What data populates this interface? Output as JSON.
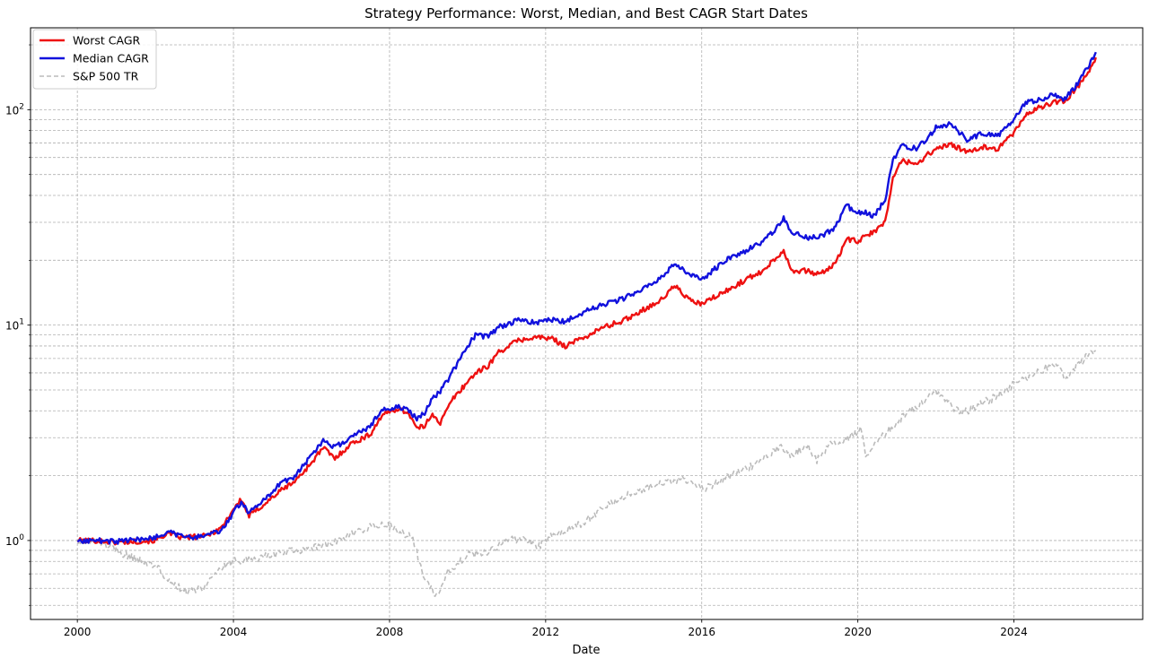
{
  "chart_data": {
    "type": "line",
    "title": "Strategy Performance: Worst, Median, and Best CAGR Start Dates",
    "xlabel": "Date",
    "ylabel": "",
    "yscale": "log",
    "xlim": [
      1998.8,
      2027.3
    ],
    "ylim": [
      0.43,
      240
    ],
    "grid": true,
    "legend_position": "top-left",
    "x_ticks": [
      "2000",
      "2004",
      "2008",
      "2012",
      "2016",
      "2020",
      "2024"
    ],
    "y_ticks": [
      "10^0",
      "10^1",
      "10^2"
    ],
    "series": [
      {
        "name": "Worst CAGR",
        "color": "#ee1111",
        "style": "solid",
        "points": [
          [
            2000.0,
            1.0
          ],
          [
            2000.5,
            1.0
          ],
          [
            2001.0,
            0.98
          ],
          [
            2001.5,
            0.99
          ],
          [
            2002.0,
            1.0
          ],
          [
            2002.3,
            1.08
          ],
          [
            2002.7,
            1.03
          ],
          [
            2003.0,
            1.04
          ],
          [
            2003.3,
            1.05
          ],
          [
            2003.7,
            1.15
          ],
          [
            2004.0,
            1.4
          ],
          [
            2004.2,
            1.55
          ],
          [
            2004.4,
            1.3
          ],
          [
            2004.8,
            1.48
          ],
          [
            2005.2,
            1.7
          ],
          [
            2005.6,
            1.9
          ],
          [
            2006.0,
            2.3
          ],
          [
            2006.3,
            2.7
          ],
          [
            2006.6,
            2.4
          ],
          [
            2007.0,
            2.8
          ],
          [
            2007.5,
            3.1
          ],
          [
            2007.8,
            3.8
          ],
          [
            2008.2,
            4.1
          ],
          [
            2008.5,
            3.9
          ],
          [
            2008.7,
            3.3
          ],
          [
            2008.9,
            3.4
          ],
          [
            2009.1,
            3.9
          ],
          [
            2009.3,
            3.5
          ],
          [
            2009.6,
            4.5
          ],
          [
            2009.9,
            5.2
          ],
          [
            2010.2,
            6.0
          ],
          [
            2010.5,
            6.4
          ],
          [
            2010.8,
            7.5
          ],
          [
            2011.3,
            8.5
          ],
          [
            2011.8,
            8.8
          ],
          [
            2012.2,
            8.6
          ],
          [
            2012.5,
            8.0
          ],
          [
            2013.0,
            8.8
          ],
          [
            2013.5,
            9.8
          ],
          [
            2014.0,
            10.5
          ],
          [
            2014.5,
            11.8
          ],
          [
            2015.0,
            13.2
          ],
          [
            2015.3,
            15.3
          ],
          [
            2015.7,
            13.0
          ],
          [
            2016.0,
            12.5
          ],
          [
            2016.3,
            13.4
          ],
          [
            2016.7,
            14.6
          ],
          [
            2017.0,
            15.8
          ],
          [
            2017.5,
            17.6
          ],
          [
            2017.9,
            20.5
          ],
          [
            2018.1,
            22.2
          ],
          [
            2018.3,
            18.0
          ],
          [
            2018.7,
            17.8
          ],
          [
            2019.0,
            17.2
          ],
          [
            2019.4,
            19.0
          ],
          [
            2019.7,
            25.0
          ],
          [
            2020.0,
            24.5
          ],
          [
            2020.2,
            25.8
          ],
          [
            2020.4,
            27.0
          ],
          [
            2020.7,
            30.0
          ],
          [
            2020.9,
            48.0
          ],
          [
            2021.1,
            58.0
          ],
          [
            2021.5,
            56.0
          ],
          [
            2021.8,
            62.0
          ],
          [
            2022.0,
            66.0
          ],
          [
            2022.4,
            69.0
          ],
          [
            2022.8,
            63.0
          ],
          [
            2023.2,
            67.0
          ],
          [
            2023.6,
            66.0
          ],
          [
            2024.0,
            78.0
          ],
          [
            2024.3,
            95.0
          ],
          [
            2024.7,
            103.0
          ],
          [
            2025.0,
            108.0
          ],
          [
            2025.3,
            110.0
          ],
          [
            2025.6,
            125.0
          ],
          [
            2025.9,
            150.0
          ],
          [
            2026.1,
            175.0
          ]
        ]
      },
      {
        "name": "Median CAGR",
        "color": "#1111dd",
        "style": "solid",
        "points": [
          [
            2000.0,
            1.0
          ],
          [
            2000.5,
            1.0
          ],
          [
            2001.0,
            0.99
          ],
          [
            2001.5,
            1.01
          ],
          [
            2002.0,
            1.03
          ],
          [
            2002.3,
            1.1
          ],
          [
            2002.7,
            1.05
          ],
          [
            2003.0,
            1.03
          ],
          [
            2003.3,
            1.06
          ],
          [
            2003.7,
            1.12
          ],
          [
            2004.0,
            1.35
          ],
          [
            2004.2,
            1.5
          ],
          [
            2004.4,
            1.35
          ],
          [
            2004.8,
            1.55
          ],
          [
            2005.2,
            1.85
          ],
          [
            2005.6,
            2.0
          ],
          [
            2006.0,
            2.5
          ],
          [
            2006.3,
            2.9
          ],
          [
            2006.6,
            2.7
          ],
          [
            2007.0,
            3.0
          ],
          [
            2007.5,
            3.4
          ],
          [
            2007.8,
            4.0
          ],
          [
            2008.2,
            4.2
          ],
          [
            2008.5,
            4.0
          ],
          [
            2008.7,
            3.7
          ],
          [
            2008.9,
            3.9
          ],
          [
            2009.1,
            4.6
          ],
          [
            2009.3,
            4.9
          ],
          [
            2009.6,
            6.0
          ],
          [
            2009.9,
            7.5
          ],
          [
            2010.2,
            9.0
          ],
          [
            2010.5,
            8.8
          ],
          [
            2010.8,
            9.8
          ],
          [
            2011.3,
            10.5
          ],
          [
            2011.8,
            10.3
          ],
          [
            2012.2,
            10.6
          ],
          [
            2012.5,
            10.4
          ],
          [
            2013.0,
            11.5
          ],
          [
            2013.5,
            12.5
          ],
          [
            2014.0,
            13.3
          ],
          [
            2014.5,
            14.8
          ],
          [
            2015.0,
            16.8
          ],
          [
            2015.3,
            19.3
          ],
          [
            2015.7,
            17.0
          ],
          [
            2016.0,
            16.3
          ],
          [
            2016.3,
            18.0
          ],
          [
            2016.7,
            20.5
          ],
          [
            2017.0,
            21.5
          ],
          [
            2017.5,
            24.0
          ],
          [
            2017.9,
            28.0
          ],
          [
            2018.1,
            31.5
          ],
          [
            2018.3,
            27.0
          ],
          [
            2018.7,
            25.5
          ],
          [
            2019.0,
            25.5
          ],
          [
            2019.4,
            28.0
          ],
          [
            2019.7,
            36.0
          ],
          [
            2020.0,
            33.0
          ],
          [
            2020.2,
            33.5
          ],
          [
            2020.4,
            32.0
          ],
          [
            2020.7,
            38.0
          ],
          [
            2020.9,
            58.0
          ],
          [
            2021.1,
            68.0
          ],
          [
            2021.5,
            66.0
          ],
          [
            2021.8,
            74.0
          ],
          [
            2022.0,
            83.0
          ],
          [
            2022.4,
            86.0
          ],
          [
            2022.8,
            72.0
          ],
          [
            2023.2,
            78.0
          ],
          [
            2023.6,
            76.0
          ],
          [
            2024.0,
            90.0
          ],
          [
            2024.3,
            108.0
          ],
          [
            2024.7,
            112.0
          ],
          [
            2025.0,
            118.0
          ],
          [
            2025.3,
            112.0
          ],
          [
            2025.6,
            130.0
          ],
          [
            2025.9,
            158.0
          ],
          [
            2026.1,
            185.0
          ]
        ]
      },
      {
        "name": "S&P 500 TR",
        "color": "#bbbbbb",
        "style": "dashed",
        "points": [
          [
            2000.0,
            0.98
          ],
          [
            2000.5,
            1.0
          ],
          [
            2001.0,
            0.9
          ],
          [
            2001.5,
            0.82
          ],
          [
            2002.0,
            0.76
          ],
          [
            2002.5,
            0.62
          ],
          [
            2002.8,
            0.58
          ],
          [
            2003.2,
            0.6
          ],
          [
            2003.6,
            0.72
          ],
          [
            2004.0,
            0.8
          ],
          [
            2004.5,
            0.82
          ],
          [
            2005.0,
            0.86
          ],
          [
            2005.5,
            0.89
          ],
          [
            2006.0,
            0.93
          ],
          [
            2006.5,
            0.97
          ],
          [
            2007.0,
            1.07
          ],
          [
            2007.5,
            1.15
          ],
          [
            2007.8,
            1.2
          ],
          [
            2008.2,
            1.12
          ],
          [
            2008.6,
            1.02
          ],
          [
            2008.8,
            0.75
          ],
          [
            2009.0,
            0.62
          ],
          [
            2009.2,
            0.55
          ],
          [
            2009.5,
            0.72
          ],
          [
            2010.0,
            0.86
          ],
          [
            2010.5,
            0.88
          ],
          [
            2011.0,
            1.0
          ],
          [
            2011.5,
            1.03
          ],
          [
            2011.8,
            0.93
          ],
          [
            2012.2,
            1.07
          ],
          [
            2012.7,
            1.15
          ],
          [
            2013.0,
            1.22
          ],
          [
            2013.5,
            1.42
          ],
          [
            2014.0,
            1.6
          ],
          [
            2014.5,
            1.73
          ],
          [
            2015.0,
            1.85
          ],
          [
            2015.5,
            1.92
          ],
          [
            2015.8,
            1.8
          ],
          [
            2016.1,
            1.75
          ],
          [
            2016.5,
            1.9
          ],
          [
            2017.0,
            2.1
          ],
          [
            2017.5,
            2.32
          ],
          [
            2018.0,
            2.7
          ],
          [
            2018.3,
            2.5
          ],
          [
            2018.7,
            2.75
          ],
          [
            2018.95,
            2.35
          ],
          [
            2019.3,
            2.8
          ],
          [
            2019.7,
            2.95
          ],
          [
            2020.1,
            3.3
          ],
          [
            2020.2,
            2.35
          ],
          [
            2020.5,
            2.9
          ],
          [
            2020.9,
            3.4
          ],
          [
            2021.2,
            3.85
          ],
          [
            2021.6,
            4.3
          ],
          [
            2022.0,
            4.9
          ],
          [
            2022.4,
            4.2
          ],
          [
            2022.7,
            3.9
          ],
          [
            2023.0,
            4.2
          ],
          [
            2023.5,
            4.6
          ],
          [
            2024.0,
            5.3
          ],
          [
            2024.5,
            5.9
          ],
          [
            2025.0,
            6.6
          ],
          [
            2025.2,
            6.2
          ],
          [
            2025.35,
            5.6
          ],
          [
            2025.6,
            6.5
          ],
          [
            2025.9,
            7.2
          ],
          [
            2026.1,
            7.6
          ]
        ]
      }
    ]
  }
}
